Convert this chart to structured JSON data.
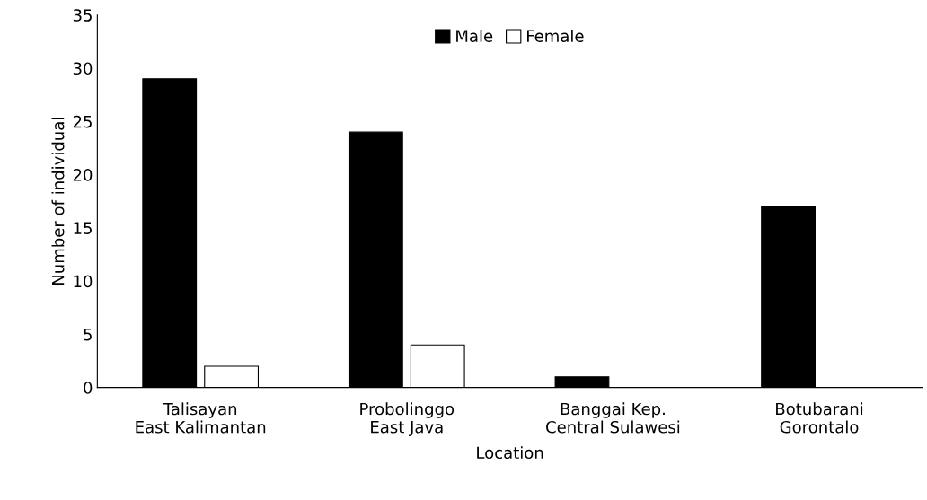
{
  "chart_data": {
    "type": "bar",
    "xlabel": "Location",
    "ylabel": "Number of individual",
    "categories": [
      "Talisayan\nEast Kalimantan",
      "Probolinggo\nEast Java",
      "Banggai Kep.\nCentral Sulawesi",
      "Botubarani\nGorontalo"
    ],
    "series": [
      {
        "name": "Male",
        "color": "#000000",
        "values": [
          29,
          24,
          1,
          17
        ]
      },
      {
        "name": "Female",
        "color": "#ffffff",
        "values": [
          2,
          4,
          0,
          0
        ]
      }
    ],
    "ylim": [
      0,
      35
    ],
    "yticks": [
      0,
      5,
      10,
      15,
      20,
      25,
      30,
      35
    ],
    "grid": false,
    "legend": "top"
  }
}
